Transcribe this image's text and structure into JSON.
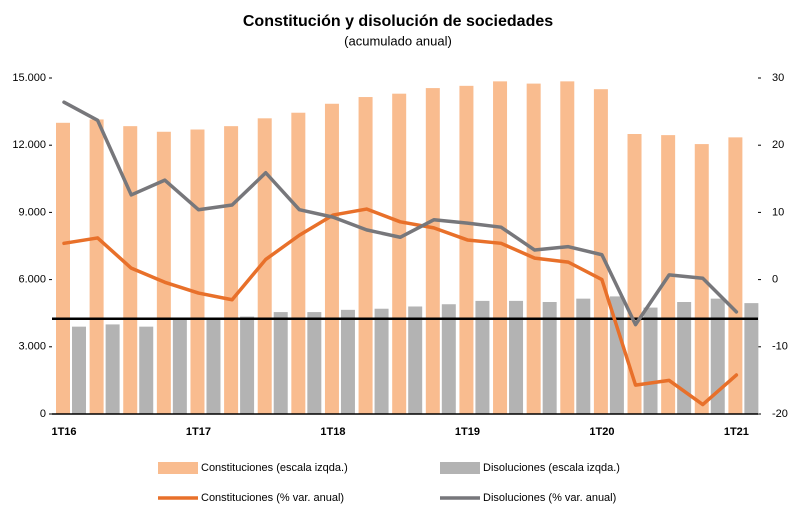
{
  "chart_data": {
    "type": "bar_line",
    "title": "Constitución y disolución de sociedades",
    "subtitle": "(acumulado anual)",
    "categories": [
      "1T16",
      null,
      null,
      null,
      "1T17",
      null,
      null,
      null,
      "1T18",
      null,
      null,
      null,
      "1T19",
      null,
      null,
      null,
      "1T20",
      null,
      null,
      null,
      "1T21"
    ],
    "series": [
      {
        "name": "Constituciones (escala izqda.)",
        "type": "bar",
        "color": "#f9bc8f",
        "values": [
          13000,
          13150,
          12850,
          12600,
          12700,
          12850,
          13200,
          13450,
          13850,
          14150,
          14300,
          14550,
          14650,
          14850,
          14750,
          14850,
          14500,
          12500,
          12450,
          12050,
          12350
        ]
      },
      {
        "name": "Disoluciones (escala izqda.)",
        "type": "bar",
        "color": "#b3b3b3",
        "values": [
          3900,
          4000,
          3900,
          4200,
          4250,
          4350,
          4550,
          4550,
          4650,
          4700,
          4800,
          4900,
          5050,
          5050,
          5000,
          5150,
          5250,
          4750,
          5000,
          5150,
          4950
        ]
      },
      {
        "name": "Constituciones (% var. anual)",
        "type": "line",
        "axis": "y2",
        "color": "#e8702a",
        "values": [
          5.4,
          6.2,
          1.7,
          -0.4,
          -2,
          -3,
          3,
          6.6,
          9.6,
          10.5,
          8.6,
          7.7,
          5.9,
          5.4,
          3.2,
          2.6,
          0,
          -15.7,
          -15,
          -18.6,
          -14.2
        ]
      },
      {
        "name": "Disoluciones (% var. anual)",
        "type": "line",
        "axis": "y2",
        "color": "#77777b",
        "values": [
          26.4,
          23.7,
          12.6,
          14.8,
          10.4,
          11.1,
          15.9,
          10.4,
          9.3,
          7.4,
          6.3,
          8.9,
          8.4,
          7.8,
          4.4,
          4.9,
          3.7,
          -6.7,
          0.7,
          0.2,
          -4.8
        ]
      }
    ],
    "reference_line": 4250,
    "ylim": [
      0,
      15000
    ],
    "yticks": [
      0,
      {
        "value": 3000,
        "label": "3.000"
      },
      {
        "value": 6000,
        "label": "6.000"
      },
      {
        "value": 9000,
        "label": "9.000"
      },
      {
        "value": 12000,
        "label": "12.000"
      },
      {
        "value": 15000,
        "label": "15.000"
      }
    ],
    "y2lim": [
      -20,
      30
    ],
    "y2ticks": [
      -20,
      -10,
      0,
      10,
      20,
      30
    ],
    "legend": "bottom"
  }
}
